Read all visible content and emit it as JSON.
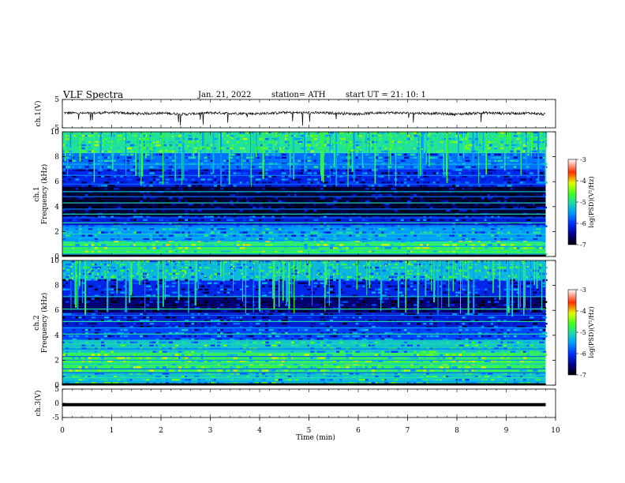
{
  "header": {
    "title": "VLF  Spectra",
    "date": "Jan. 21, 2022",
    "station": "station= ATH",
    "start": "start  UT  =    21: 10: 1"
  },
  "chart_data": [
    {
      "type": "line",
      "name": "ch1-waveform",
      "ylabel": "ch.1(V)",
      "ylim": [
        -5,
        5
      ],
      "yticks": [
        "5",
        "-5"
      ],
      "xlim": [
        0,
        10
      ],
      "x": [
        0.0,
        0.5,
        1.0,
        1.5,
        2.0,
        2.5,
        3.0,
        3.5,
        4.0,
        4.5,
        5.0,
        5.5,
        6.0,
        6.5,
        7.0,
        7.5,
        8.0,
        8.5,
        9.0,
        9.5,
        9.8
      ],
      "y": [
        0.3,
        0.1,
        0.4,
        0.0,
        0.2,
        -0.2,
        0.3,
        0.1,
        0.0,
        0.4,
        0.3,
        0.2,
        -0.1,
        0.4,
        0.2,
        0.1,
        -0.2,
        0.3,
        0.1,
        0.2,
        -0.3
      ]
    },
    {
      "type": "heatmap",
      "name": "ch1-spectrogram",
      "ylabel": "ch.1\nFrequency (kHz)",
      "ylim": [
        0,
        10
      ],
      "yticks": [
        "10",
        "8",
        "6",
        "4",
        "2",
        "0"
      ],
      "xlim": [
        0,
        9.8
      ],
      "colorbar": {
        "label": "log(PSD)(V²/Hz)",
        "range": [
          -7,
          -3
        ],
        "ticks": [
          "-3",
          "-4",
          "-5",
          "-6",
          "-7"
        ]
      },
      "lines_khz": [
        0.2,
        0.5,
        0.8,
        1.1,
        1.5,
        1.8,
        2.1,
        2.4,
        2.7,
        3.1,
        3.4,
        3.8,
        4.3,
        4.8,
        5.2,
        5.8,
        6.5,
        7.4
      ],
      "bands": [
        [
          0,
          1.2,
          -4.8
        ],
        [
          1.2,
          2.5,
          -5.5
        ],
        [
          2.5,
          3.2,
          -6.2
        ],
        [
          3.2,
          5.6,
          -6.8
        ],
        [
          5.6,
          7.0,
          -6.1
        ],
        [
          7.0,
          8.3,
          -5.7
        ],
        [
          8.3,
          10,
          -5.0
        ]
      ]
    },
    {
      "type": "heatmap",
      "name": "ch2-spectrogram",
      "ylabel": "ch.2\nFrequency (kHz)",
      "ylim": [
        0,
        10
      ],
      "yticks": [
        "10",
        "8",
        "6",
        "4",
        "2",
        "0"
      ],
      "xlim": [
        0,
        9.8
      ],
      "colorbar": {
        "label": "log(PSD)(V²/Hz)",
        "range": [
          -7,
          -3
        ],
        "ticks": [
          "-3",
          "-4",
          "-5",
          "-6",
          "-7"
        ]
      },
      "lines_khz": [
        0.3,
        0.6,
        1.0,
        1.3,
        1.7,
        2.0,
        2.3,
        2.9,
        3.3,
        3.6,
        4.1,
        4.6,
        5.1,
        5.6,
        6.1,
        7.1
      ],
      "bands": [
        [
          0,
          1.0,
          -5.2
        ],
        [
          1.0,
          2.6,
          -4.8
        ],
        [
          2.6,
          3.6,
          -5.2
        ],
        [
          3.6,
          4.6,
          -5.9
        ],
        [
          4.6,
          5.8,
          -6.2
        ],
        [
          5.8,
          7.1,
          -6.6
        ],
        [
          7.1,
          8.4,
          -6.1
        ],
        [
          8.4,
          10,
          -5.3
        ]
      ]
    },
    {
      "type": "line",
      "name": "ch3-waveform",
      "ylabel": "ch.3(V)",
      "ylim": [
        -5,
        5
      ],
      "yticks": [
        "5",
        "0",
        "-5"
      ],
      "xlim": [
        0,
        10
      ],
      "x": [
        0.0,
        9.8
      ],
      "y": [
        -0.5,
        -0.5
      ],
      "xlabel": "Time  (min)",
      "xticks": [
        "0",
        "1",
        "2",
        "3",
        "4",
        "5",
        "6",
        "7",
        "8",
        "9",
        "10"
      ]
    }
  ],
  "colors": {
    "axis": "#000000",
    "background": "#ffffff",
    "low": "#000010",
    "mid": "#1040ff",
    "high": "#30e040"
  }
}
